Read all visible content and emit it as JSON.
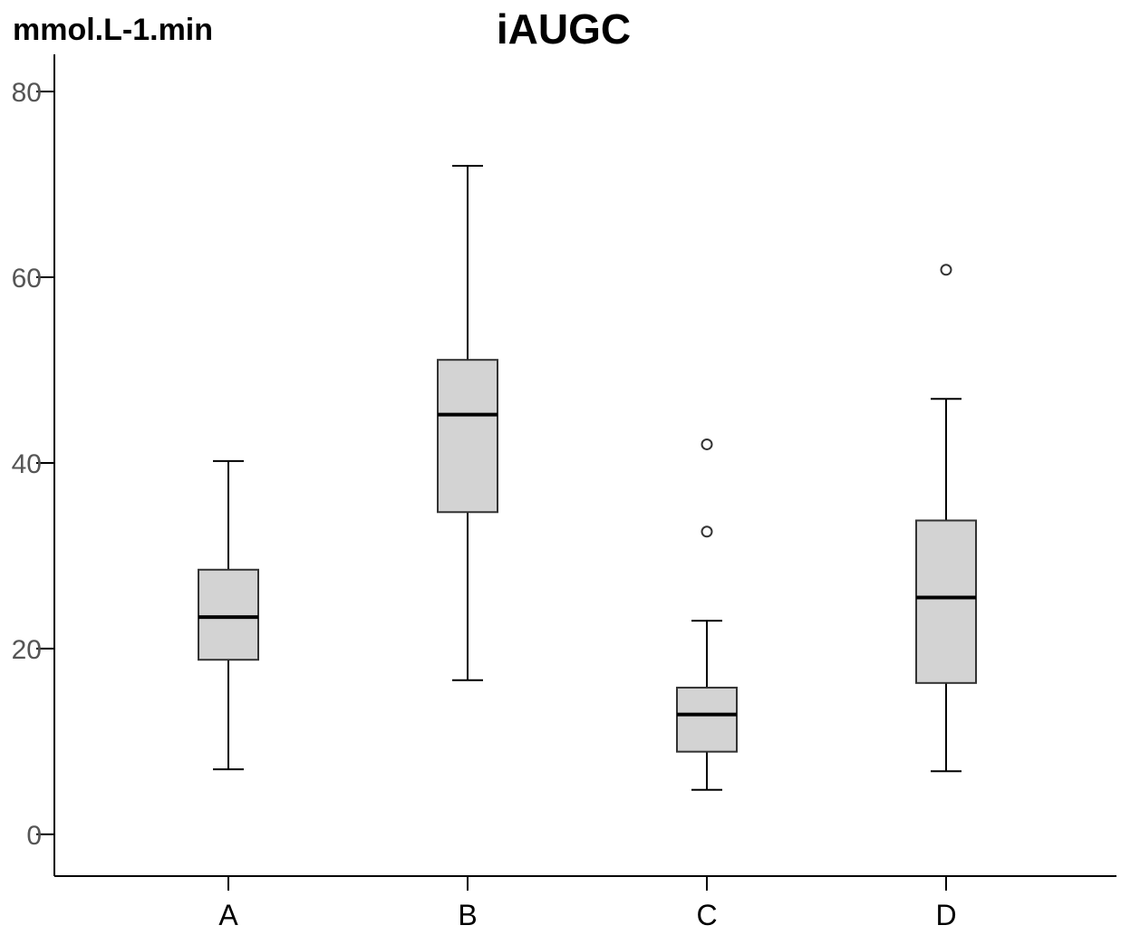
{
  "chart_data": {
    "type": "boxplot",
    "title": "iAUGC",
    "ylabel": "mmol.L-1.min",
    "ylim": [
      -4.5,
      84
    ],
    "yticks": [
      0,
      20,
      40,
      60,
      80
    ],
    "categories": [
      "A",
      "B",
      "C",
      "D"
    ],
    "boxes": [
      {
        "category": "A",
        "whisker_low": 7.0,
        "q1": 18.8,
        "median": 23.4,
        "q3": 28.5,
        "whisker_high": 40.2,
        "outliers": []
      },
      {
        "category": "B",
        "whisker_low": 16.6,
        "q1": 34.7,
        "median": 45.2,
        "q3": 51.1,
        "whisker_high": 72.0,
        "outliers": []
      },
      {
        "category": "C",
        "whisker_low": 4.8,
        "q1": 8.9,
        "median": 12.9,
        "q3": 15.8,
        "whisker_high": 23.0,
        "outliers": [
          32.6,
          42.0
        ]
      },
      {
        "category": "D",
        "whisker_low": 6.8,
        "q1": 16.3,
        "median": 25.5,
        "q3": 33.8,
        "whisker_high": 46.9,
        "outliers": [
          60.8
        ]
      }
    ],
    "colors": {
      "box_fill": "#d3d3d3",
      "box_stroke": "#000000",
      "axis": "#000000",
      "tick_label": "#555555"
    },
    "grid": false
  }
}
